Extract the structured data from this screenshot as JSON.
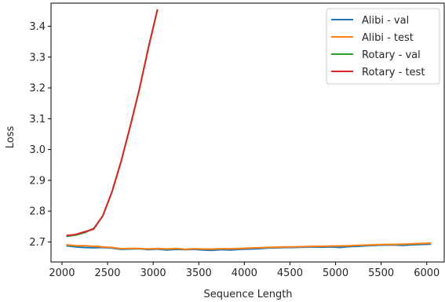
{
  "chart_data": {
    "type": "line",
    "title": "",
    "xlabel": "Sequence Length",
    "ylabel": "Loss",
    "xlim": [
      1880,
      6200
    ],
    "ylim": [
      2.635,
      3.475
    ],
    "xticks": [
      2000,
      2500,
      3000,
      3500,
      4000,
      4500,
      5000,
      5500,
      6000
    ],
    "yticks": [
      2.7,
      2.8,
      2.9,
      3.0,
      3.1,
      3.2,
      3.3,
      3.4
    ],
    "ytick_labels": [
      "2.7",
      "2.8",
      "2.9",
      "3.0",
      "3.1",
      "3.2",
      "3.3",
      "3.4"
    ],
    "grid": false,
    "legend_position": "top-right",
    "series": [
      {
        "name": "Alibi - val",
        "color": "#1f77b4",
        "x": [
          2048,
          2148,
          2248,
          2348,
          2448,
          2548,
          2648,
          2748,
          2848,
          2948,
          3048,
          3148,
          3248,
          3348,
          3448,
          3548,
          3648,
          3748,
          3848,
          3948,
          4048,
          4148,
          4248,
          4348,
          4448,
          4548,
          4648,
          4748,
          4848,
          4948,
          5048,
          5148,
          5248,
          5348,
          5448,
          5548,
          5648,
          5748,
          5848,
          5948,
          6048
        ],
        "y": [
          2.688,
          2.684,
          2.682,
          2.681,
          2.682,
          2.68,
          2.676,
          2.677,
          2.678,
          2.675,
          2.677,
          2.674,
          2.676,
          2.675,
          2.676,
          2.674,
          2.673,
          2.675,
          2.674,
          2.676,
          2.677,
          2.678,
          2.68,
          2.681,
          2.682,
          2.682,
          2.683,
          2.684,
          2.683,
          2.684,
          2.682,
          2.685,
          2.686,
          2.688,
          2.689,
          2.69,
          2.69,
          2.689,
          2.691,
          2.692,
          2.693
        ]
      },
      {
        "name": "Alibi - test",
        "color": "#ff7f0e",
        "x": [
          2048,
          2148,
          2248,
          2348,
          2448,
          2548,
          2648,
          2748,
          2848,
          2948,
          3048,
          3148,
          3248,
          3348,
          3448,
          3548,
          3648,
          3748,
          3848,
          3948,
          4048,
          4148,
          4248,
          4348,
          4448,
          4548,
          4648,
          4748,
          4848,
          4948,
          5048,
          5148,
          5248,
          5348,
          5448,
          5548,
          5648,
          5748,
          5848,
          5948,
          6048
        ],
        "y": [
          2.691,
          2.688,
          2.688,
          2.686,
          2.684,
          2.682,
          2.678,
          2.679,
          2.679,
          2.677,
          2.679,
          2.677,
          2.679,
          2.676,
          2.678,
          2.677,
          2.677,
          2.678,
          2.678,
          2.679,
          2.68,
          2.681,
          2.682,
          2.683,
          2.684,
          2.684,
          2.685,
          2.686,
          2.686,
          2.687,
          2.687,
          2.688,
          2.689,
          2.69,
          2.691,
          2.692,
          2.692,
          2.693,
          2.694,
          2.695,
          2.696
        ]
      },
      {
        "name": "Rotary - val",
        "color": "#2ca02c",
        "x": [
          2048,
          2148,
          2248,
          2348,
          2448,
          2548,
          2648,
          2748,
          2848,
          2948,
          3048
        ],
        "y": [
          2.718,
          2.722,
          2.73,
          2.744,
          2.785,
          2.862,
          2.96,
          3.075,
          3.195,
          3.33,
          3.455
        ]
      },
      {
        "name": "Rotary - test",
        "color": "#d62728",
        "x": [
          2048,
          2148,
          2248,
          2348,
          2448,
          2548,
          2648,
          2748,
          2848,
          2948,
          3048
        ],
        "y": [
          2.721,
          2.724,
          2.733,
          2.742,
          2.785,
          2.862,
          2.96,
          3.075,
          3.195,
          3.33,
          3.455
        ]
      }
    ]
  }
}
